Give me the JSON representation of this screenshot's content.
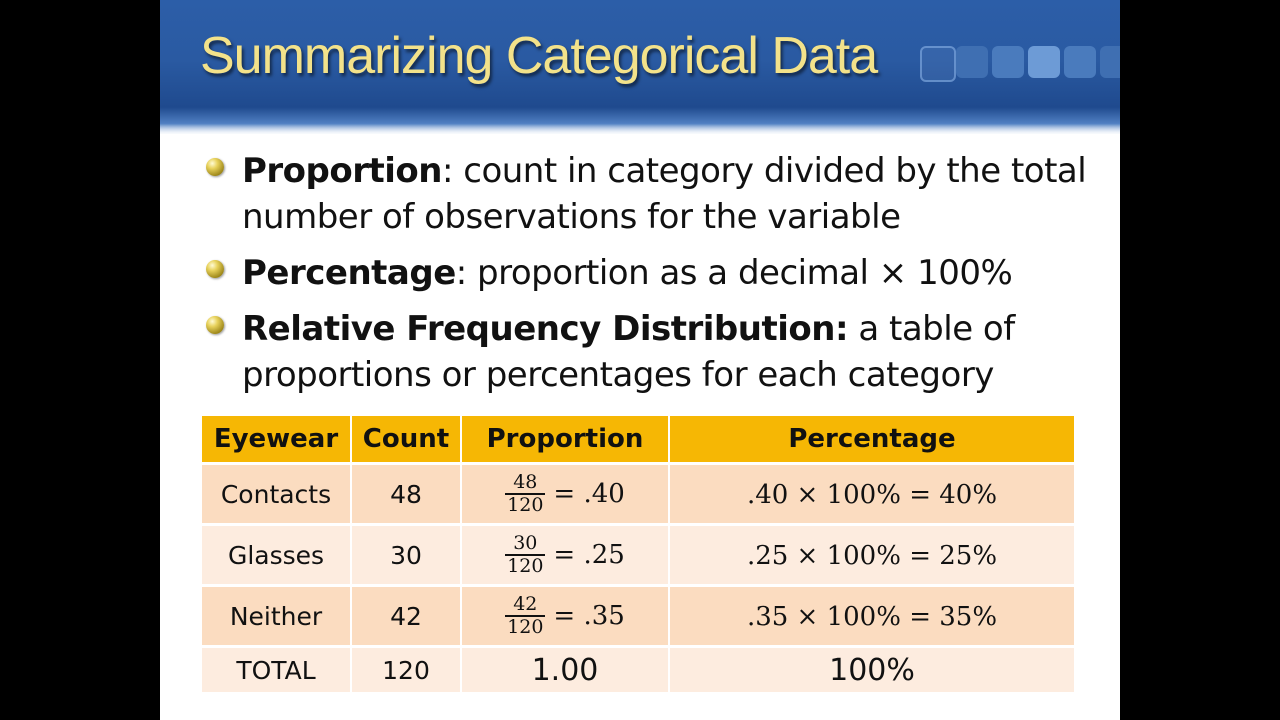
{
  "slide": {
    "title": "Summarizing Categorical Data",
    "bullets": [
      {
        "term": "Proportion",
        "text": ": count in category divided by the total number of observations for the variable"
      },
      {
        "term": "Percentage",
        "text": ": proportion as a decimal × 100%"
      },
      {
        "term": "Relative Frequency Distribution:",
        "text": " a table of proportions or percentages for each category"
      }
    ]
  },
  "table": {
    "headers": [
      "Eyewear",
      "Count",
      "Proportion",
      "Percentage"
    ],
    "rows": [
      {
        "eyewear": "Contacts",
        "count": "48",
        "numerator": "48",
        "denominator": "120",
        "proportion": "= .40",
        "percentage": ".40 × 100% = 40%"
      },
      {
        "eyewear": "Glasses",
        "count": "30",
        "numerator": "30",
        "denominator": "120",
        "proportion": "= .25",
        "percentage": ".25 × 100% = 25%"
      },
      {
        "eyewear": "Neither",
        "count": "42",
        "numerator": "42",
        "denominator": "120",
        "proportion": "= .35",
        "percentage": ".35 × 100% = 35%"
      }
    ],
    "total": {
      "label": "TOTAL",
      "count": "120",
      "proportion": "1.00",
      "percentage": "100%"
    }
  },
  "colors": {
    "title_text": "#f3e28a",
    "title_bar": "#2a5aa2",
    "header_fill": "#f6b704",
    "row_odd": "#fbdcc0",
    "row_even": "#fdecdf"
  }
}
